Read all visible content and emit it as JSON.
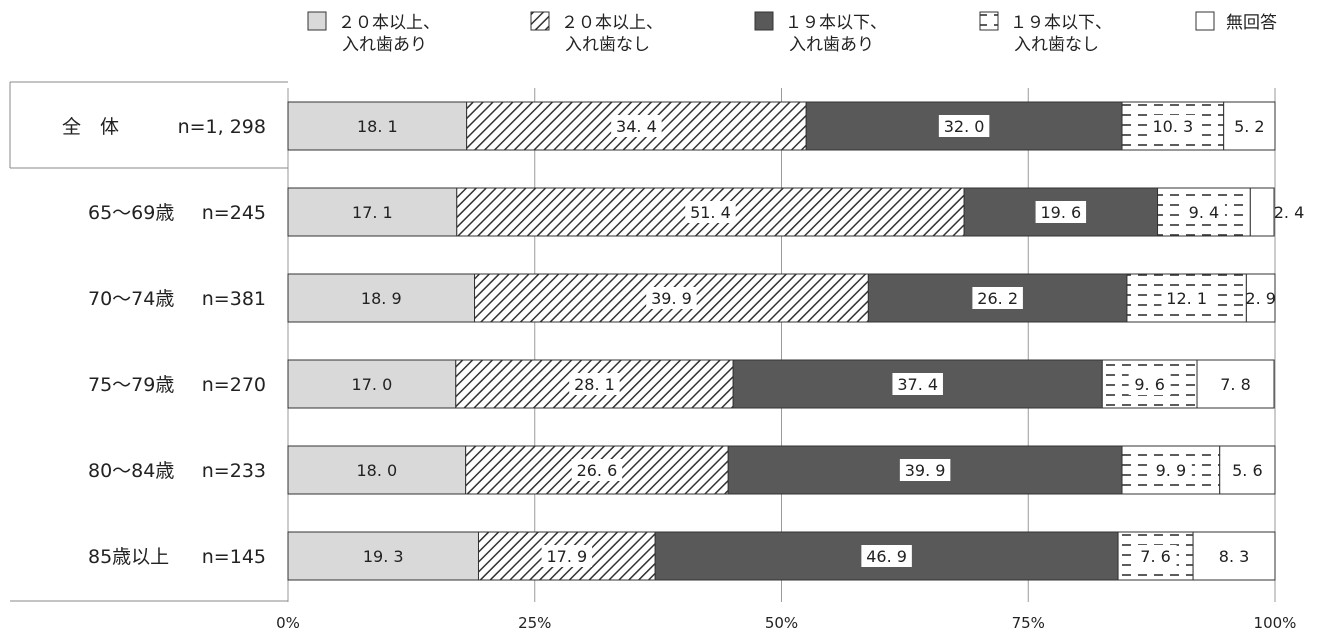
{
  "chart_data": {
    "type": "bar",
    "orientation": "horizontal",
    "stacked": true,
    "percent_scale": true,
    "categories": [
      {
        "name": "全　体",
        "n": "n=1, 298"
      },
      {
        "name": "65～69歳",
        "n": "n=245"
      },
      {
        "name": "70～74歳",
        "n": "n=381"
      },
      {
        "name": "75～79歳",
        "n": "n=270"
      },
      {
        "name": "80～84歳",
        "n": "n=233"
      },
      {
        "name": "85歳以上",
        "n": "n=145"
      }
    ],
    "series": [
      {
        "name_lines": [
          "２０本以上、",
          "入れ歯あり"
        ],
        "fill": "#d9d9d9",
        "pattern": "solid",
        "values": [
          18.1,
          17.1,
          18.9,
          17.0,
          18.0,
          19.3
        ],
        "labels": [
          "18. 1",
          "17. 1",
          "18. 9",
          "17. 0",
          "18. 0",
          "19. 3"
        ]
      },
      {
        "name_lines": [
          "２０本以上、",
          "入れ歯なし"
        ],
        "fill": "#ffffff",
        "pattern": "diagonal",
        "values": [
          34.4,
          51.4,
          39.9,
          28.1,
          26.6,
          17.9
        ],
        "labels": [
          "34. 4",
          "51. 4",
          "39. 9",
          "28. 1",
          "26. 6",
          "17. 9"
        ]
      },
      {
        "name_lines": [
          "１９本以下、",
          "入れ歯あり"
        ],
        "fill": "#595959",
        "pattern": "solid",
        "values": [
          32.0,
          19.6,
          26.2,
          37.4,
          39.9,
          46.9
        ],
        "labels": [
          "32. 0",
          "19. 6",
          "26. 2",
          "37. 4",
          "39. 9",
          "46. 9"
        ]
      },
      {
        "name_lines": [
          "１９本以下、",
          "入れ歯なし"
        ],
        "fill": "#ffffff",
        "pattern": "dashes",
        "values": [
          10.3,
          9.4,
          12.1,
          9.6,
          9.9,
          7.6
        ],
        "labels": [
          "10. 3",
          "9. 4",
          "12. 1",
          "9. 6",
          "9. 9",
          "7. 6"
        ]
      },
      {
        "name_lines": [
          "無回答"
        ],
        "fill": "#ffffff",
        "pattern": "solid",
        "values": [
          5.2,
          2.4,
          2.9,
          7.8,
          5.6,
          8.3
        ],
        "labels": [
          "5. 2",
          "2. 4",
          "2. 9",
          "7. 8",
          "5. 6",
          "8. 3"
        ]
      }
    ],
    "x_ticks": [
      "0%",
      "25%",
      "50%",
      "75%",
      "100%"
    ],
    "xlim": [
      0,
      100
    ],
    "legend_position": "top",
    "grid": "vertical"
  }
}
